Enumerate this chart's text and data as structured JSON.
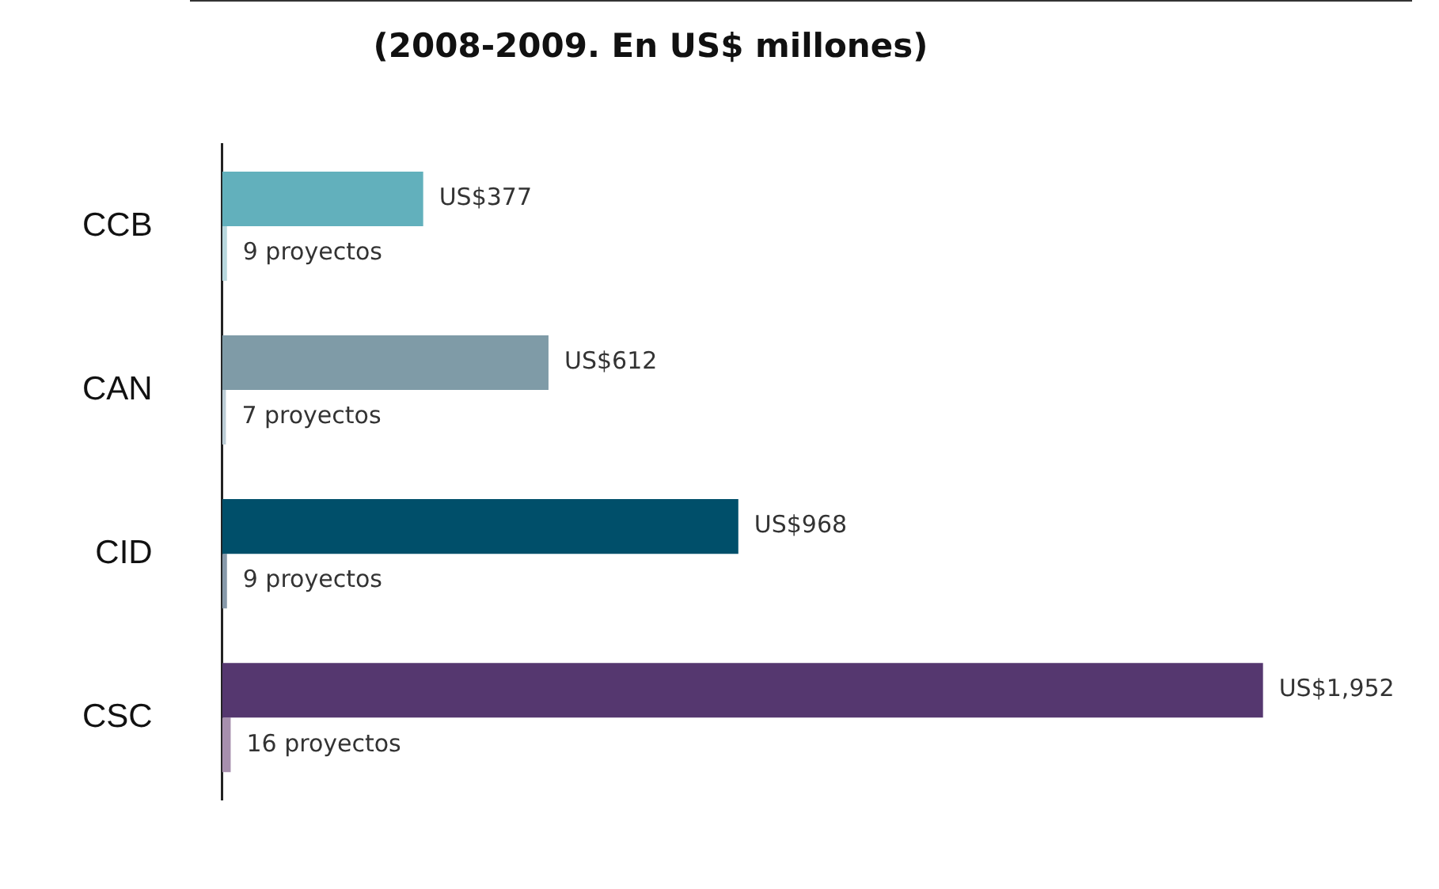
{
  "chart_data": {
    "type": "bar",
    "orientation": "horizontal",
    "title": "(2008-2009. En US$ millones)",
    "categories": [
      "CCB",
      "CAN",
      "CID",
      "CSC"
    ],
    "series": [
      {
        "colors": [
          "#62b0bc",
          "#7f9ba7",
          "#004f6a",
          "#55376f"
        ],
        "values": [
          377,
          612,
          968,
          1952
        ],
        "value_labels": [
          "US$377",
          "US$612",
          "US$968",
          "US$1,952"
        ]
      },
      {
        "colors": [
          "#b8d8de",
          "#bccdd6",
          "#8799aa",
          "#a78fae"
        ],
        "values": [
          9,
          7,
          9,
          16
        ],
        "value_labels": [
          "9 proyectos",
          "7 proyectos",
          "9 proyectos",
          "16 proyectos"
        ]
      }
    ]
  }
}
